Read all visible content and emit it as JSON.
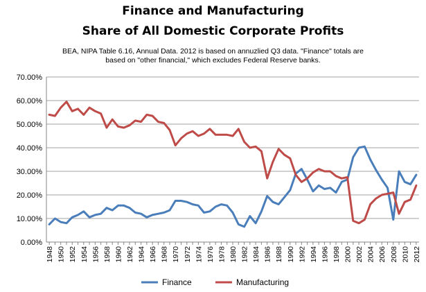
{
  "chart_data": {
    "type": "line",
    "title_line1": "Finance and Manufacturing",
    "title_line2": "Share of All Domestic Corporate Profits",
    "subtitle_line1": "BEA, NIPA Table 6.16, Annual Data. 2012 is based on annuzlied Q3 data. \"Finance\" totals are",
    "subtitle_line2": "based on \"other financial,\" which excludes Federal Reserve banks.",
    "xlabel": "",
    "ylabel": "",
    "ylim": [
      0,
      70
    ],
    "y_ticks": [
      "0.00%",
      "10.00%",
      "20.00%",
      "30.00%",
      "40.00%",
      "50.00%",
      "60.00%",
      "70.00%"
    ],
    "x_tick_labels": [
      "1948",
      "1950",
      "1952",
      "1954",
      "1956",
      "1958",
      "1960",
      "1962",
      "1964",
      "1966",
      "1968",
      "1970",
      "1972",
      "1974",
      "1976",
      "1978",
      "1980",
      "1982",
      "1984",
      "1986",
      "1988",
      "1990",
      "1992",
      "1994",
      "1996",
      "1998",
      "2000",
      "2002",
      "2004",
      "2006",
      "2008",
      "2010",
      "2012"
    ],
    "grid": true,
    "legend_position": "bottom",
    "x": [
      1948,
      1949,
      1950,
      1951,
      1952,
      1953,
      1954,
      1955,
      1956,
      1957,
      1958,
      1959,
      1960,
      1961,
      1962,
      1963,
      1964,
      1965,
      1966,
      1967,
      1968,
      1969,
      1970,
      1971,
      1972,
      1973,
      1974,
      1975,
      1976,
      1977,
      1978,
      1979,
      1980,
      1981,
      1982,
      1983,
      1984,
      1985,
      1986,
      1987,
      1988,
      1989,
      1990,
      1991,
      1992,
      1993,
      1994,
      1995,
      1996,
      1997,
      1998,
      1999,
      2000,
      2001,
      2002,
      2003,
      2004,
      2005,
      2006,
      2007,
      2008,
      2009,
      2010,
      2011,
      2012
    ],
    "series": [
      {
        "name": "Finance",
        "color": "#4a7ebb",
        "values": [
          7.5,
          10,
          8.5,
          8,
          10.5,
          11.5,
          13,
          10.5,
          11.5,
          12,
          14.5,
          13.5,
          15.5,
          15.5,
          14.5,
          12.5,
          12,
          10.5,
          11.5,
          12,
          12.5,
          13.5,
          17.5,
          17.5,
          17,
          16,
          15.5,
          12.5,
          13,
          15,
          16,
          15.5,
          12.5,
          7.5,
          6.5,
          11,
          8,
          13,
          19.5,
          17,
          16,
          19,
          22,
          29,
          31,
          26.5,
          21.5,
          24,
          22.5,
          23,
          21,
          25.5,
          26.5,
          36,
          40,
          40.5,
          35,
          30.5,
          26.5,
          23,
          9.5,
          30,
          25.5,
          24.5,
          28.5
        ]
      },
      {
        "name": "Manufacturing",
        "color": "#be4b48",
        "values": [
          54,
          53.5,
          57,
          59.5,
          55.5,
          56.5,
          54,
          57,
          55.5,
          54.5,
          48.5,
          52,
          49,
          48.5,
          49.5,
          51.5,
          51,
          54,
          53.5,
          51,
          50.5,
          47.5,
          41,
          44,
          46,
          47,
          45,
          46,
          48,
          45.5,
          45.5,
          45.5,
          45,
          48,
          42.5,
          40,
          40.5,
          38.5,
          27,
          34,
          39.5,
          37,
          35.5,
          28.5,
          25.5,
          27,
          29.5,
          31,
          30,
          30,
          28,
          27,
          27.5,
          9,
          8,
          9.5,
          16,
          18.5,
          20,
          20.5,
          21,
          12,
          17,
          18,
          24
        ]
      }
    ]
  }
}
